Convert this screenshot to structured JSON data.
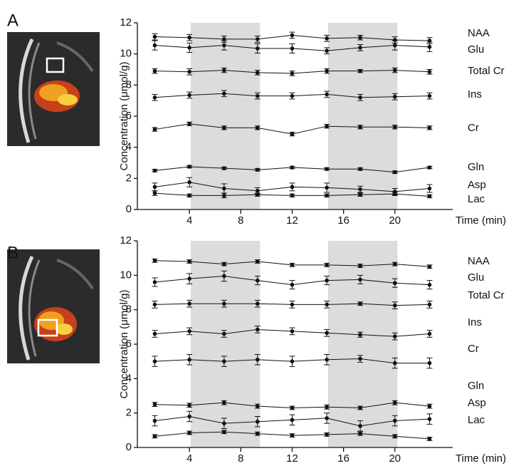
{
  "chart_data": [
    {
      "type": "line",
      "panel": "A",
      "ylabel": "Concentration (μmol/g)",
      "xlabel": "Time (min)",
      "x": [
        1.3,
        4,
        6.7,
        9.3,
        12,
        14.7,
        17.3,
        20,
        22.7
      ],
      "xlim": [
        0,
        24.5
      ],
      "xticks": [
        4,
        8,
        12,
        16,
        20
      ],
      "ylim": [
        0,
        12
      ],
      "yticks": [
        0,
        2,
        4,
        6,
        8,
        10,
        12
      ],
      "bands": [
        [
          4.1,
          9.5
        ],
        [
          14.8,
          20.2
        ]
      ],
      "series": [
        {
          "name": "NAA",
          "color": "#111111",
          "values": [
            11.1,
            11.05,
            10.95,
            10.95,
            11.2,
            11.0,
            11.05,
            10.9,
            10.85
          ],
          "errors": [
            0.2,
            0.2,
            0.2,
            0.2,
            0.2,
            0.2,
            0.15,
            0.2,
            0.2
          ]
        },
        {
          "name": "Glu",
          "color": "#111111",
          "values": [
            10.55,
            10.4,
            10.55,
            10.35,
            10.35,
            10.2,
            10.4,
            10.55,
            10.45
          ],
          "errors": [
            0.3,
            0.3,
            0.3,
            0.3,
            0.3,
            0.2,
            0.2,
            0.3,
            0.3
          ]
        },
        {
          "name": "Total Cr",
          "color": "#111111",
          "values": [
            8.9,
            8.85,
            8.95,
            8.8,
            8.75,
            8.9,
            8.9,
            8.95,
            8.85
          ],
          "errors": [
            0.15,
            0.2,
            0.15,
            0.15,
            0.15,
            0.15,
            0.1,
            0.15,
            0.15
          ]
        },
        {
          "name": "Ins",
          "color": "#111111",
          "values": [
            7.2,
            7.35,
            7.45,
            7.3,
            7.3,
            7.4,
            7.2,
            7.25,
            7.3
          ],
          "errors": [
            0.2,
            0.2,
            0.2,
            0.2,
            0.2,
            0.2,
            0.2,
            0.2,
            0.2
          ]
        },
        {
          "name": "Cr",
          "color": "#111111",
          "values": [
            5.15,
            5.5,
            5.25,
            5.25,
            4.85,
            5.35,
            5.3,
            5.3,
            5.25
          ],
          "errors": [
            0.12,
            0.12,
            0.12,
            0.12,
            0.12,
            0.12,
            0.12,
            0.12,
            0.12
          ]
        },
        {
          "name": "Gln",
          "color": "#111111",
          "values": [
            2.5,
            2.75,
            2.65,
            2.55,
            2.7,
            2.6,
            2.6,
            2.4,
            2.7
          ],
          "errors": [
            0.08,
            0.08,
            0.08,
            0.08,
            0.08,
            0.08,
            0.08,
            0.08,
            0.08
          ]
        },
        {
          "name": "Asp",
          "color": "#111111",
          "values": [
            1.45,
            1.75,
            1.35,
            1.2,
            1.45,
            1.4,
            1.3,
            1.15,
            1.35
          ],
          "errors": [
            0.25,
            0.3,
            0.3,
            0.2,
            0.25,
            0.3,
            0.2,
            0.2,
            0.25
          ]
        },
        {
          "name": "Lac",
          "color": "#111111",
          "values": [
            1.05,
            0.9,
            0.9,
            0.95,
            0.9,
            0.9,
            0.95,
            1.0,
            0.85
          ],
          "errors": [
            0.15,
            0.1,
            0.15,
            0.1,
            0.1,
            0.1,
            0.1,
            0.1,
            0.1
          ]
        }
      ]
    },
    {
      "type": "line",
      "panel": "B",
      "ylabel": "Concentration (μmol/g)",
      "xlabel": "Time (min)",
      "x": [
        1.3,
        4,
        6.7,
        9.3,
        12,
        14.7,
        17.3,
        20,
        22.7
      ],
      "xlim": [
        0,
        24.5
      ],
      "xticks": [
        4,
        8,
        12,
        16,
        20
      ],
      "ylim": [
        0,
        12
      ],
      "yticks": [
        0,
        2,
        4,
        6,
        8,
        10,
        12
      ],
      "bands": [
        [
          4.1,
          9.5
        ],
        [
          14.8,
          20.2
        ]
      ],
      "series": [
        {
          "name": "NAA",
          "color": "#111111",
          "values": [
            10.85,
            10.8,
            10.65,
            10.8,
            10.6,
            10.6,
            10.55,
            10.65,
            10.5
          ],
          "errors": [
            0.1,
            0.1,
            0.1,
            0.1,
            0.1,
            0.1,
            0.1,
            0.1,
            0.1
          ]
        },
        {
          "name": "Glu",
          "color": "#111111",
          "values": [
            9.6,
            9.8,
            9.95,
            9.7,
            9.45,
            9.7,
            9.75,
            9.55,
            9.45
          ],
          "errors": [
            0.25,
            0.3,
            0.3,
            0.25,
            0.25,
            0.25,
            0.25,
            0.25,
            0.25
          ]
        },
        {
          "name": "Total Cr",
          "color": "#111111",
          "values": [
            8.3,
            8.35,
            8.35,
            8.35,
            8.3,
            8.3,
            8.35,
            8.25,
            8.3
          ],
          "errors": [
            0.2,
            0.2,
            0.2,
            0.2,
            0.2,
            0.2,
            0.1,
            0.2,
            0.2
          ]
        },
        {
          "name": "Ins",
          "color": "#111111",
          "values": [
            6.6,
            6.75,
            6.6,
            6.85,
            6.75,
            6.65,
            6.55,
            6.45,
            6.6
          ],
          "errors": [
            0.2,
            0.2,
            0.2,
            0.2,
            0.2,
            0.2,
            0.15,
            0.2,
            0.2
          ]
        },
        {
          "name": "Cr",
          "color": "#111111",
          "values": [
            5.0,
            5.1,
            5.0,
            5.1,
            5.0,
            5.1,
            5.15,
            4.9,
            4.9
          ],
          "errors": [
            0.3,
            0.3,
            0.3,
            0.3,
            0.3,
            0.3,
            0.2,
            0.3,
            0.3
          ]
        },
        {
          "name": "Gln",
          "color": "#111111",
          "values": [
            2.5,
            2.45,
            2.6,
            2.4,
            2.3,
            2.35,
            2.3,
            2.6,
            2.4
          ],
          "errors": [
            0.12,
            0.12,
            0.12,
            0.12,
            0.1,
            0.12,
            0.1,
            0.12,
            0.12
          ]
        },
        {
          "name": "Asp",
          "color": "#111111",
          "values": [
            1.55,
            1.8,
            1.4,
            1.5,
            1.6,
            1.7,
            1.25,
            1.55,
            1.65
          ],
          "errors": [
            0.3,
            0.3,
            0.3,
            0.3,
            0.3,
            0.3,
            0.3,
            0.3,
            0.3
          ]
        },
        {
          "name": "Lac",
          "color": "#111111",
          "values": [
            0.65,
            0.85,
            0.9,
            0.8,
            0.7,
            0.75,
            0.8,
            0.65,
            0.5
          ],
          "errors": [
            0.1,
            0.1,
            0.1,
            0.1,
            0.1,
            0.1,
            0.1,
            0.1,
            0.1
          ]
        }
      ]
    }
  ]
}
